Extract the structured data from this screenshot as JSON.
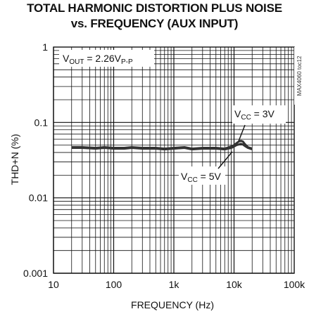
{
  "chart_data": {
    "type": "line",
    "title_line1": "TOTAL HARMONIC DISTORTION PLUS NOISE",
    "title_line2": "vs. FREQUENCY (AUX INPUT)",
    "xlabel": "FREQUENCY (Hz)",
    "ylabel": "THD+N (%)",
    "x_scale": "log",
    "y_scale": "log",
    "xlim": [
      10,
      100000
    ],
    "ylim": [
      0.001,
      1
    ],
    "grid": true,
    "x_ticks": [
      {
        "value": 10,
        "label": "10"
      },
      {
        "value": 100,
        "label": "100"
      },
      {
        "value": 1000,
        "label": "1k"
      },
      {
        "value": 10000,
        "label": "10k"
      },
      {
        "value": 100000,
        "label": "100k"
      }
    ],
    "y_ticks": [
      {
        "value": 1,
        "label": "1"
      },
      {
        "value": 0.1,
        "label": "0.1"
      },
      {
        "value": 0.01,
        "label": "0.01"
      },
      {
        "value": 0.001,
        "label": "0.001"
      }
    ],
    "condition": {
      "prefix": "V",
      "sub1": "OUT",
      "mid": " = 2.26V",
      "sub2": "P-P"
    },
    "side_code": "MAX4060 toc12",
    "series": [
      {
        "name": "VCC = 3V",
        "label": {
          "prefix": "V",
          "sub": "CC",
          "suffix": " = 3V"
        },
        "x": [
          20,
          30,
          50,
          70,
          100,
          150,
          200,
          300,
          500,
          700,
          1000,
          1500,
          2000,
          3000,
          5000,
          7000,
          9000,
          10000,
          11000,
          12000,
          13000,
          14000,
          15000,
          17000,
          20000
        ],
        "y": [
          0.047,
          0.047,
          0.046,
          0.047,
          0.046,
          0.046,
          0.047,
          0.046,
          0.046,
          0.045,
          0.046,
          0.047,
          0.045,
          0.046,
          0.046,
          0.045,
          0.048,
          0.05,
          0.053,
          0.056,
          0.057,
          0.056,
          0.052,
          0.047,
          0.045
        ]
      },
      {
        "name": "VCC = 5V",
        "label": {
          "prefix": "V",
          "sub": "CC",
          "suffix": " = 5V"
        },
        "x": [
          20,
          30,
          50,
          70,
          100,
          150,
          200,
          300,
          500,
          700,
          1000,
          1500,
          2000,
          3000,
          5000,
          7000,
          9000,
          10000,
          11000,
          12000,
          13000,
          14000,
          15000,
          17000,
          20000
        ],
        "y": [
          0.046,
          0.046,
          0.045,
          0.046,
          0.045,
          0.045,
          0.046,
          0.045,
          0.045,
          0.044,
          0.045,
          0.046,
          0.044,
          0.045,
          0.045,
          0.044,
          0.046,
          0.048,
          0.05,
          0.051,
          0.052,
          0.051,
          0.049,
          0.046,
          0.044
        ]
      }
    ]
  }
}
